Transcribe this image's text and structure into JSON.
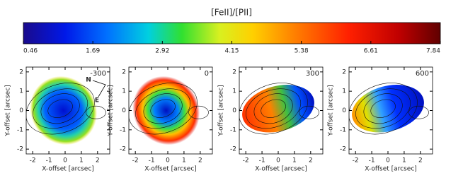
{
  "chart_data": {
    "type": "heatmap",
    "colorbar": {
      "title": "[FeII]/[PII]",
      "lim": [
        0.46,
        7.84
      ],
      "ticks": [
        0.46,
        1.69,
        2.92,
        4.15,
        5.38,
        6.61,
        7.84
      ]
    },
    "panels": [
      {
        "label": "-300"
      },
      {
        "label": "0"
      },
      {
        "label": "300"
      },
      {
        "label": "600"
      }
    ],
    "xlabel": "X-offset [arcsec]",
    "ylabel": "Y-offset [arcsec]",
    "xlim": [
      -2.4,
      2.75
    ],
    "ylim": [
      -2.25,
      2.25
    ],
    "xticks": [
      -2,
      -1,
      0,
      1,
      2
    ],
    "yticks": [
      -2,
      -1,
      0,
      1,
      2
    ],
    "annotations": [
      "N",
      "E"
    ]
  }
}
